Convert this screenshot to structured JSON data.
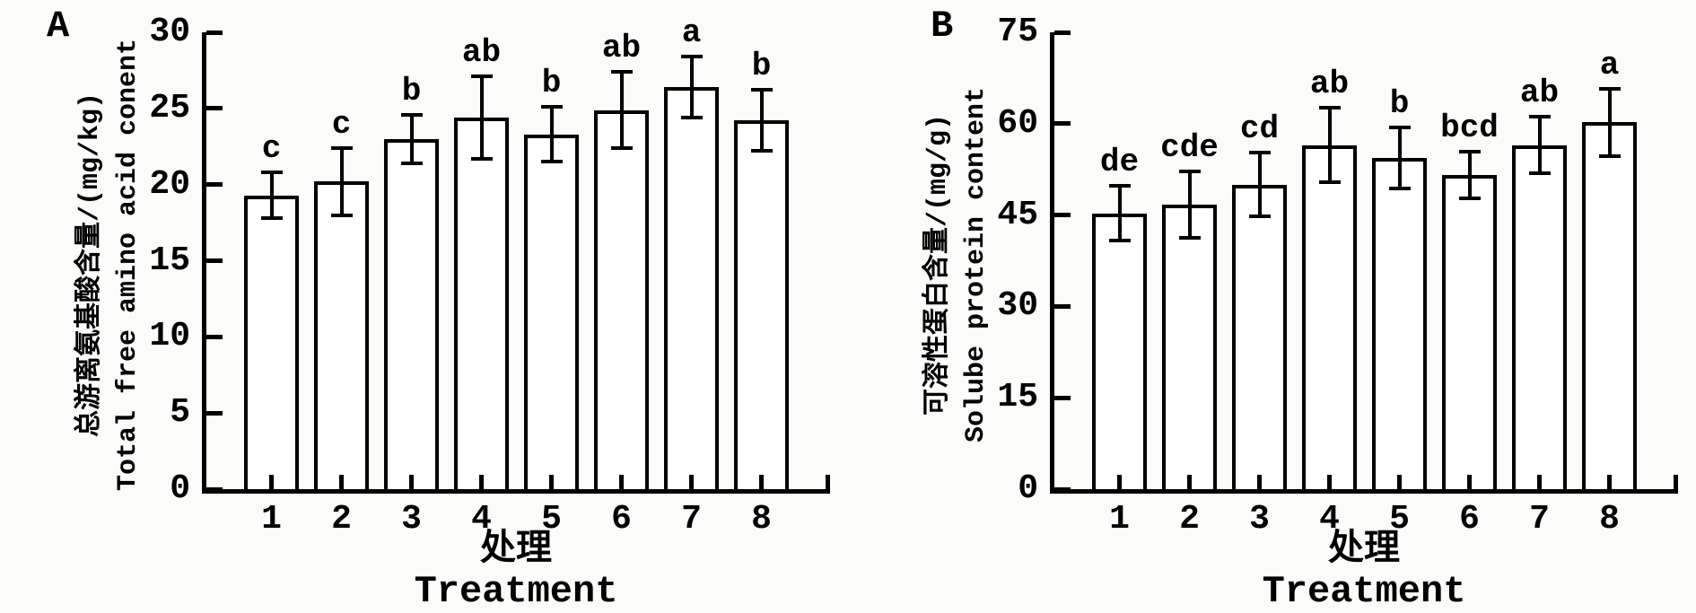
{
  "colors": {
    "ink": "#000000",
    "bar_fill": "#ffffff",
    "background": "#fbfbf9"
  },
  "chart_data": [
    {
      "type": "bar",
      "panel_label": "A",
      "categories": [
        "1",
        "2",
        "3",
        "4",
        "5",
        "6",
        "7",
        "8"
      ],
      "values": [
        19.3,
        20.2,
        23.0,
        24.4,
        23.3,
        24.9,
        26.4,
        24.2
      ],
      "errors": [
        1.5,
        2.2,
        1.6,
        2.7,
        1.8,
        2.5,
        2.0,
        2.0
      ],
      "sig_letters": [
        "c",
        "c",
        "b",
        "ab",
        "b",
        "ab",
        "a",
        "b"
      ],
      "ylabel_zh": "总游离氨基酸含量/(mg/kg)",
      "ylabel_en": "Total free amino acid conent",
      "xlabel_zh": "处理",
      "xlabel_en": "Treatment",
      "ylim": [
        0,
        30
      ],
      "yticks": [
        0,
        5,
        10,
        15,
        20,
        25,
        30
      ],
      "grid": "off",
      "legend": "none"
    },
    {
      "type": "bar",
      "panel_label": "B",
      "categories": [
        "1",
        "2",
        "3",
        "4",
        "5",
        "6",
        "7",
        "8"
      ],
      "values": [
        45.3,
        46.7,
        50.0,
        56.5,
        54.4,
        51.6,
        56.5,
        60.2
      ],
      "errors": [
        4.5,
        5.5,
        5.2,
        6.1,
        5.0,
        3.8,
        4.7,
        5.5
      ],
      "sig_letters": [
        "de",
        "cde",
        "cd",
        "ab",
        "b",
        "bcd",
        "ab",
        "a"
      ],
      "ylabel_zh": "可溶性蛋白含量/(mg/g)",
      "ylabel_en": "Solube protein content",
      "xlabel_zh": "处理",
      "xlabel_en": "Treatment",
      "ylim": [
        0,
        75
      ],
      "yticks": [
        0,
        15,
        30,
        45,
        60,
        75
      ],
      "grid": "off",
      "legend": "none"
    }
  ]
}
